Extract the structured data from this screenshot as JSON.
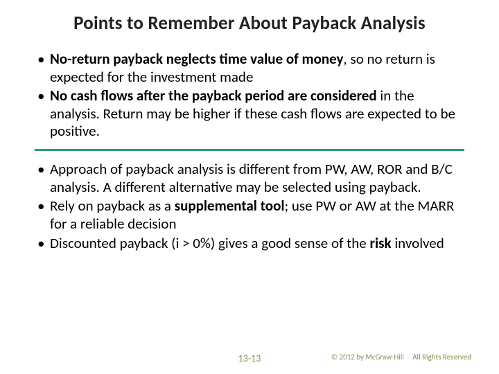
{
  "title": {
    "text": "Points to Remember About Payback Analysis",
    "fontsize": 27,
    "color": "#222222"
  },
  "body_fontsize": 21,
  "body_color": "#000000",
  "divider_color": "#2f9e6e",
  "section1": {
    "items": [
      {
        "pre_bold": "No-return payback neglects time value of money",
        "post": ", so no return is expected for the investment made"
      },
      {
        "pre_bold": "No cash flows after the payback period are considered",
        "post": " in the analysis. Return may be higher if these cash flows are expected to be positive."
      }
    ]
  },
  "section2": {
    "items": [
      {
        "plain": "Approach of payback analysis is different from PW, AW, ROR and B/C analysis. A different alternative may be selected using payback."
      },
      {
        "pre": "Rely on payback as a ",
        "bold": "supplemental tool",
        "post": "; use PW or AW at the MARR for a reliable decision"
      },
      {
        "pre": "Discounted payback (i > 0%) gives a good sense of the ",
        "bold": "risk",
        "post": " involved"
      }
    ]
  },
  "footer": {
    "page": "13-13",
    "copyright": "© 2012 by McGraw-Hill",
    "rights": "All Rights Reserved",
    "color": "#8c8c55"
  }
}
